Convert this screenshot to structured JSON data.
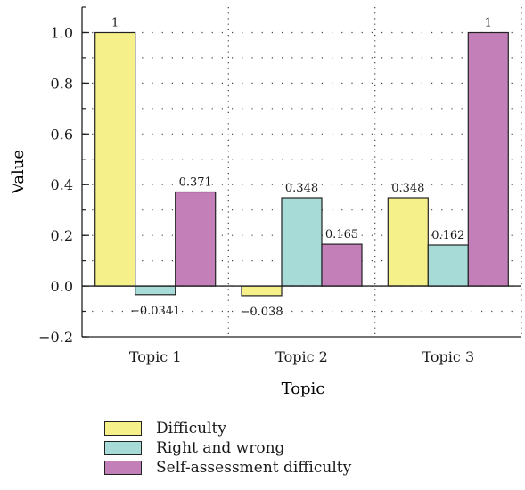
{
  "chart_data": {
    "type": "bar",
    "categories": [
      "Topic 1",
      "Topic 2",
      "Topic 3"
    ],
    "series": [
      {
        "name": "Difficulty",
        "values": [
          1,
          -0.038,
          0.348
        ],
        "labels": [
          "1",
          "−0.038",
          "0.348"
        ],
        "color": "#f6f08b"
      },
      {
        "name": "Right and wrong",
        "values": [
          -0.0341,
          0.348,
          0.162
        ],
        "labels": [
          "−0.0341",
          "0.348",
          "0.162"
        ],
        "color": "#a6dbd8"
      },
      {
        "name": "Self-assessment difficulty",
        "values": [
          0.371,
          0.165,
          1
        ],
        "labels": [
          "0.371",
          "0.165",
          "1"
        ],
        "color": "#c27fb8"
      }
    ],
    "xlabel": "Topic",
    "ylabel": "Value",
    "ylim": [
      -0.2,
      1.1
    ],
    "yticks": [
      -0.2,
      0.0,
      0.2,
      0.4,
      0.6,
      0.8,
      1.0
    ],
    "ytick_labels": [
      "−0.2",
      "0.0",
      "0.2",
      "0.4",
      "0.6",
      "0.8",
      "1.0"
    ],
    "grid": "dotted",
    "legend_position": "bottom-left"
  }
}
